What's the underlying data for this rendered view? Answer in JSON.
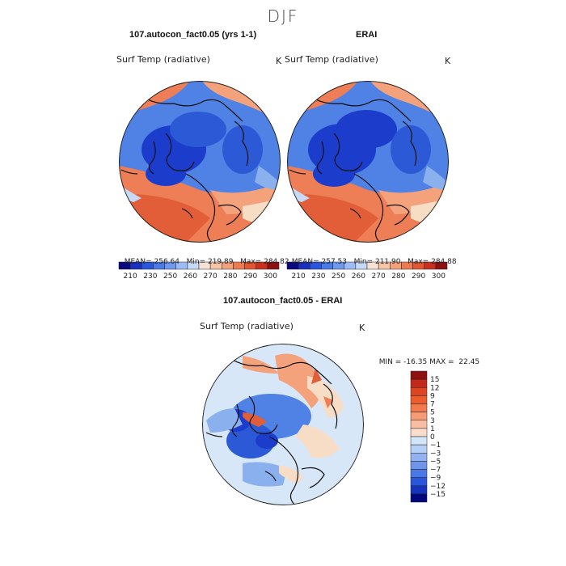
{
  "figure": {
    "title": "DJF"
  },
  "panels": [
    {
      "id": "model",
      "title": "107.autocon_fact0.05 (yrs 1-1)",
      "variable": "Surf Temp (radiative)",
      "units": "K",
      "stats": {
        "mean": "256.64",
        "min": "219.89",
        "max": "284.82"
      }
    },
    {
      "id": "obs",
      "title": "ERAI",
      "variable": "Surf Temp (radiative)",
      "units": "K",
      "stats": {
        "mean": "257.53",
        "min": "211.90",
        "max": "284.88"
      }
    },
    {
      "id": "diff",
      "title": "107.autocon_fact0.05 - ERAI",
      "variable": "Surf Temp (radiative)",
      "units": "K",
      "stats": {
        "min": "-16.35",
        "max": "22.45"
      }
    }
  ],
  "labels": {
    "mean_prefix": "MEAN=",
    "min_prefix": "Min=",
    "max_prefix": "Max=",
    "diff_min_prefix": "MIN =",
    "diff_max_prefix": "MAX ="
  },
  "abs_colorbar": {
    "tick_labels": [
      "210",
      "230",
      "250",
      "260",
      "270",
      "280",
      "290",
      "300"
    ],
    "colors": [
      "#08087f",
      "#1a2fc0",
      "#2a55dd",
      "#4a7ae8",
      "#6f98ef",
      "#9dbbf4",
      "#c6d9f7",
      "#f7e1d2",
      "#f6c4a6",
      "#f2a37c",
      "#ec7b52",
      "#e25632",
      "#c9301f",
      "#8f1010"
    ]
  },
  "diff_colorbar": {
    "tick_labels": [
      "15",
      "12",
      "9",
      "7",
      "5",
      "3",
      "1",
      "0",
      "−1",
      "−3",
      "−5",
      "−7",
      "−9",
      "−12",
      "−15"
    ],
    "colors": [
      "#8f1010",
      "#c4271b",
      "#dc4424",
      "#ee5b2c",
      "#f27a4c",
      "#f59c77",
      "#f7bea3",
      "#fadccc",
      "#d3e5f8",
      "#b6cff5",
      "#92b3f0",
      "#6f95ea",
      "#4a78e6",
      "#2a55dd",
      "#1434bd",
      "#04087e"
    ]
  },
  "map_colors": {
    "cold_core": "#1c3ccc",
    "cold": "#2c5ad6",
    "cool": "#4f82e4",
    "mild_cool": "#8bb0ee",
    "pale_blue": "#c6d9f7",
    "pale_peach": "#f7dcc6",
    "warm": "#f4a27c",
    "warmer": "#ee7e55",
    "hot": "#e25e38",
    "diff_bg": "#d8e7f8",
    "coast": "#111111"
  }
}
